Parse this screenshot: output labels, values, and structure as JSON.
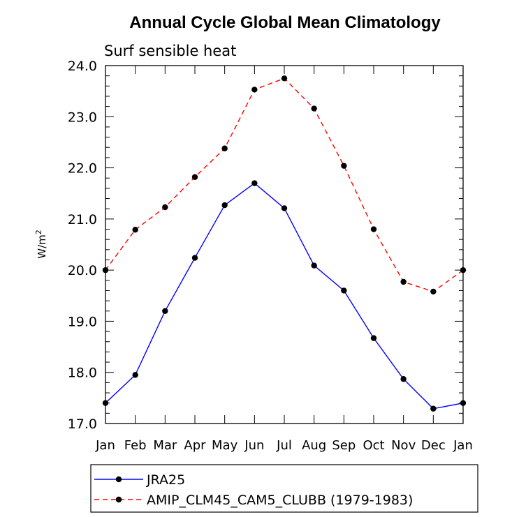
{
  "chart_data": {
    "type": "line",
    "title": "Annual Cycle Global Mean Climatology",
    "subtitle": "Surf sensible heat",
    "ylabel": "W/m",
    "ylabel_superscript": "2",
    "xlabel": "",
    "ylim": [
      17.0,
      24.0
    ],
    "y_ticks": [
      "17.0",
      "18.0",
      "19.0",
      "20.0",
      "21.0",
      "22.0",
      "23.0",
      "24.0"
    ],
    "categories": [
      "Jan",
      "Feb",
      "Mar",
      "Apr",
      "May",
      "Jun",
      "Jul",
      "Aug",
      "Sep",
      "Oct",
      "Nov",
      "Dec",
      "Jan"
    ],
    "grid": false,
    "legend_position": "bottom",
    "series": [
      {
        "name": "JRA25",
        "color": "#0000ff",
        "style": "solid",
        "marker": "filled-circle",
        "values": [
          17.4,
          17.95,
          19.2,
          20.24,
          21.27,
          21.7,
          21.21,
          20.09,
          19.6,
          18.67,
          17.87,
          17.29,
          17.4
        ]
      },
      {
        "name": "AMIP_CLM45_CAM5_CLUBB (1979-1983)",
        "color": "#ff0000",
        "style": "dashed",
        "marker": "filled-circle",
        "values": [
          20.0,
          20.79,
          21.23,
          21.82,
          22.38,
          23.53,
          23.75,
          23.16,
          22.04,
          20.8,
          19.77,
          19.58,
          20.0
        ]
      }
    ]
  }
}
